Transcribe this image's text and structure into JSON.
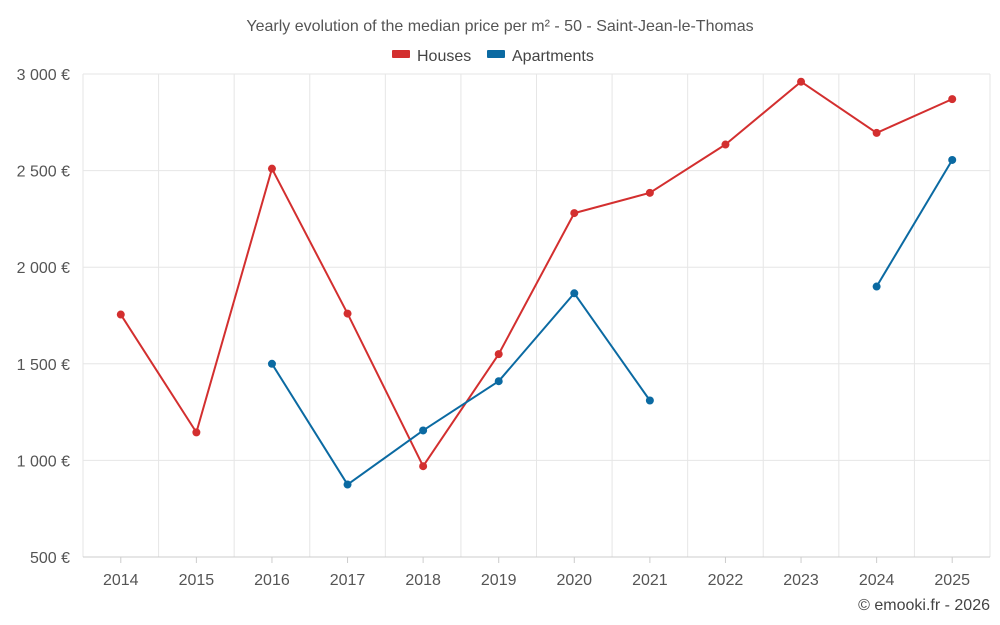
{
  "chart_data": {
    "type": "line",
    "title": "Yearly evolution of the median price per m² - 50 - Saint-Jean-le-Thomas",
    "categories": [
      "2014",
      "2015",
      "2016",
      "2017",
      "2018",
      "2019",
      "2020",
      "2021",
      "2022",
      "2023",
      "2024",
      "2025"
    ],
    "series": [
      {
        "name": "Houses",
        "color": "#d32f2f",
        "values": [
          1755,
          1145,
          2510,
          1760,
          970,
          1550,
          2280,
          2385,
          2635,
          2960,
          2695,
          2870
        ]
      },
      {
        "name": "Apartments",
        "color": "#0b6aa2",
        "values": [
          null,
          null,
          1500,
          875,
          1155,
          1410,
          1865,
          1310,
          null,
          null,
          1900,
          2555
        ]
      }
    ],
    "ylim": [
      500,
      3000
    ],
    "yticks": [
      500,
      1000,
      1500,
      2000,
      2500,
      3000
    ],
    "ytick_labels": [
      "500 €",
      "1 000 €",
      "1 500 €",
      "2 000 €",
      "2 500 €",
      "3 000 €"
    ],
    "xlabel": "",
    "ylabel": "",
    "legend_position": "top-center",
    "grid": true
  },
  "credit": "© emooki.fr - 2026"
}
